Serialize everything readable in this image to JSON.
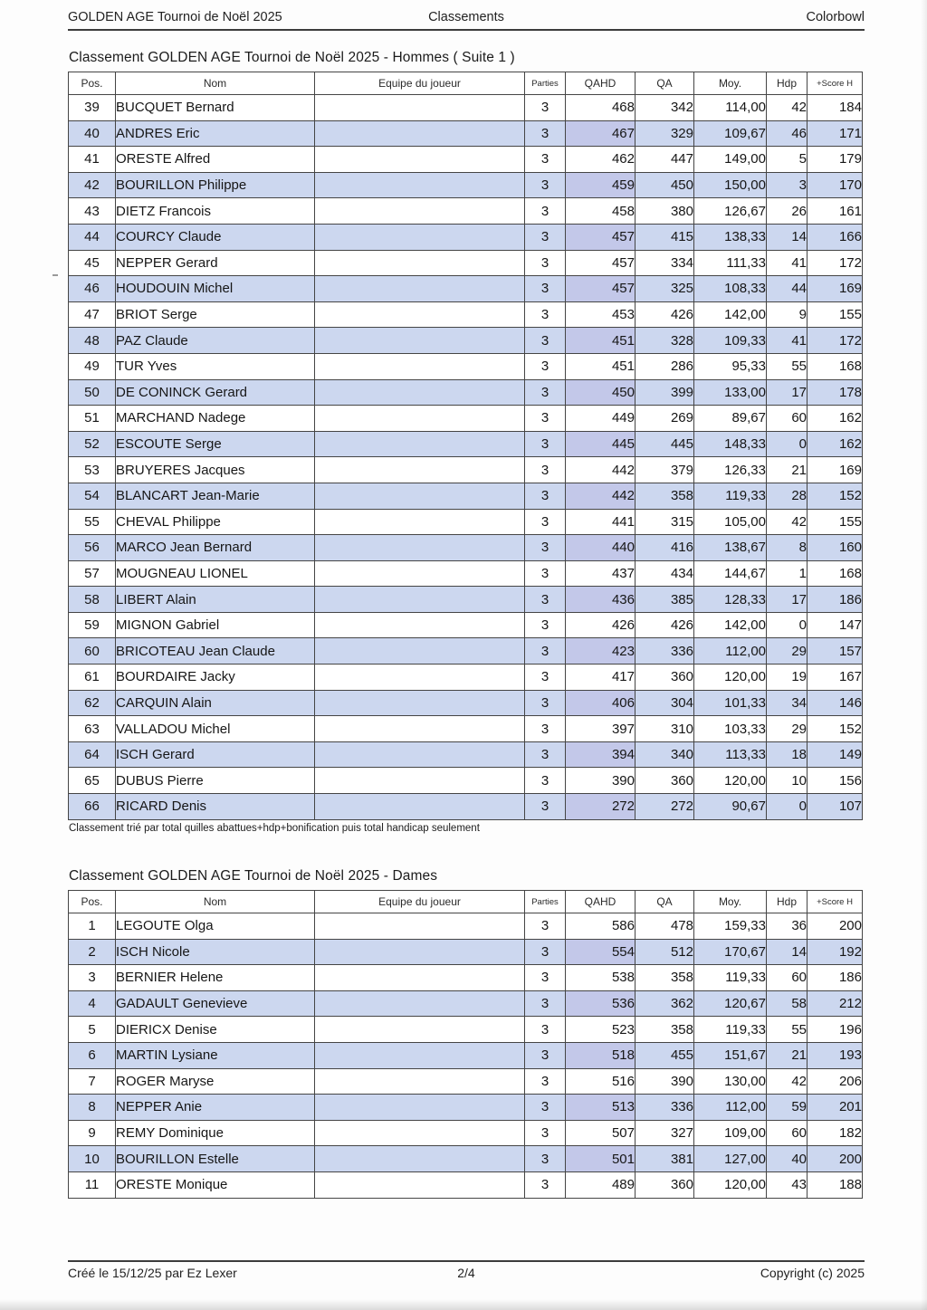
{
  "page_header": {
    "left": "GOLDEN AGE Tournoi de Noël 2025",
    "center": "Classements",
    "right": "Colorbowl"
  },
  "tables": [
    {
      "title": "Classement GOLDEN AGE Tournoi de Noël 2025 - Hommes ( Suite 1 )",
      "columns": [
        "Pos.",
        "Nom",
        "Equipe du joueur",
        "Parties",
        "QAHD",
        "QA",
        "Moy.",
        "Hdp",
        "+Score H"
      ],
      "rows": [
        [
          "39",
          "BUCQUET Bernard",
          "",
          "3",
          "468",
          "342",
          "114,00",
          "42",
          "184"
        ],
        [
          "40",
          "ANDRES Eric",
          "",
          "3",
          "467",
          "329",
          "109,67",
          "46",
          "171"
        ],
        [
          "41",
          "ORESTE Alfred",
          "",
          "3",
          "462",
          "447",
          "149,00",
          "5",
          "179"
        ],
        [
          "42",
          "BOURILLON Philippe",
          "",
          "3",
          "459",
          "450",
          "150,00",
          "3",
          "170"
        ],
        [
          "43",
          "DIETZ Francois",
          "",
          "3",
          "458",
          "380",
          "126,67",
          "26",
          "161"
        ],
        [
          "44",
          "COURCY Claude",
          "",
          "3",
          "457",
          "415",
          "138,33",
          "14",
          "166"
        ],
        [
          "45",
          "NEPPER Gerard",
          "",
          "3",
          "457",
          "334",
          "111,33",
          "41",
          "172"
        ],
        [
          "46",
          "HOUDOUIN Michel",
          "",
          "3",
          "457",
          "325",
          "108,33",
          "44",
          "169"
        ],
        [
          "47",
          "BRIOT Serge",
          "",
          "3",
          "453",
          "426",
          "142,00",
          "9",
          "155"
        ],
        [
          "48",
          "PAZ Claude",
          "",
          "3",
          "451",
          "328",
          "109,33",
          "41",
          "172"
        ],
        [
          "49",
          "TUR Yves",
          "",
          "3",
          "451",
          "286",
          "95,33",
          "55",
          "168"
        ],
        [
          "50",
          "DE CONINCK Gerard",
          "",
          "3",
          "450",
          "399",
          "133,00",
          "17",
          "178"
        ],
        [
          "51",
          "MARCHAND Nadege",
          "",
          "3",
          "449",
          "269",
          "89,67",
          "60",
          "162"
        ],
        [
          "52",
          "ESCOUTE Serge",
          "",
          "3",
          "445",
          "445",
          "148,33",
          "0",
          "162"
        ],
        [
          "53",
          "BRUYERES Jacques",
          "",
          "3",
          "442",
          "379",
          "126,33",
          "21",
          "169"
        ],
        [
          "54",
          "BLANCART Jean-Marie",
          "",
          "3",
          "442",
          "358",
          "119,33",
          "28",
          "152"
        ],
        [
          "55",
          "CHEVAL Philippe",
          "",
          "3",
          "441",
          "315",
          "105,00",
          "42",
          "155"
        ],
        [
          "56",
          "MARCO Jean Bernard",
          "",
          "3",
          "440",
          "416",
          "138,67",
          "8",
          "160"
        ],
        [
          "57",
          "MOUGNEAU LIONEL",
          "",
          "3",
          "437",
          "434",
          "144,67",
          "1",
          "168"
        ],
        [
          "58",
          "LIBERT Alain",
          "",
          "3",
          "436",
          "385",
          "128,33",
          "17",
          "186"
        ],
        [
          "59",
          "MIGNON Gabriel",
          "",
          "3",
          "426",
          "426",
          "142,00",
          "0",
          "147"
        ],
        [
          "60",
          "BRICOTEAU Jean Claude",
          "",
          "3",
          "423",
          "336",
          "112,00",
          "29",
          "157"
        ],
        [
          "61",
          "BOURDAIRE Jacky",
          "",
          "3",
          "417",
          "360",
          "120,00",
          "19",
          "167"
        ],
        [
          "62",
          "CARQUIN Alain",
          "",
          "3",
          "406",
          "304",
          "101,33",
          "34",
          "146"
        ],
        [
          "63",
          "VALLADOU Michel",
          "",
          "3",
          "397",
          "310",
          "103,33",
          "29",
          "152"
        ],
        [
          "64",
          "ISCH Gerard",
          "",
          "3",
          "394",
          "340",
          "113,33",
          "18",
          "149"
        ],
        [
          "65",
          "DUBUS Pierre",
          "",
          "3",
          "390",
          "360",
          "120,00",
          "10",
          "156"
        ],
        [
          "66",
          "RICARD Denis",
          "",
          "3",
          "272",
          "272",
          "90,67",
          "0",
          "107"
        ]
      ],
      "note": "Classement trié par total quilles abattues+hdp+bonification puis total handicap seulement"
    },
    {
      "title": "Classement GOLDEN AGE Tournoi de Noël 2025 - Dames",
      "columns": [
        "Pos.",
        "Nom",
        "Equipe du joueur",
        "Parties",
        "QAHD",
        "QA",
        "Moy.",
        "Hdp",
        "+Score H"
      ],
      "rows": [
        [
          "1",
          "LEGOUTE Olga",
          "",
          "3",
          "586",
          "478",
          "159,33",
          "36",
          "200"
        ],
        [
          "2",
          "ISCH Nicole",
          "",
          "3",
          "554",
          "512",
          "170,67",
          "14",
          "192"
        ],
        [
          "3",
          "BERNIER Helene",
          "",
          "3",
          "538",
          "358",
          "119,33",
          "60",
          "186"
        ],
        [
          "4",
          "GADAULT Genevieve",
          "",
          "3",
          "536",
          "362",
          "120,67",
          "58",
          "212"
        ],
        [
          "5",
          "DIERICX Denise",
          "",
          "3",
          "523",
          "358",
          "119,33",
          "55",
          "196"
        ],
        [
          "6",
          "MARTIN Lysiane",
          "",
          "3",
          "518",
          "455",
          "151,67",
          "21",
          "193"
        ],
        [
          "7",
          "ROGER Maryse",
          "",
          "3",
          "516",
          "390",
          "130,00",
          "42",
          "206"
        ],
        [
          "8",
          "NEPPER Anie",
          "",
          "3",
          "513",
          "336",
          "112,00",
          "59",
          "201"
        ],
        [
          "9",
          "REMY Dominique",
          "",
          "3",
          "507",
          "327",
          "109,00",
          "60",
          "182"
        ],
        [
          "10",
          "BOURILLON Estelle",
          "",
          "3",
          "501",
          "381",
          "127,00",
          "40",
          "200"
        ],
        [
          "11",
          "ORESTE Monique",
          "",
          "3",
          "489",
          "360",
          "120,00",
          "43",
          "188"
        ]
      ],
      "note": ""
    }
  ],
  "footer": {
    "left": "Créé le 15/12/25 par Ez Lexer",
    "center": "2/4",
    "right": "Copyright (c) 2025"
  },
  "colors": {
    "row_alt": "#ccd7ef",
    "row_alt_qahd": "#c3c8e9",
    "border": "#454545"
  }
}
